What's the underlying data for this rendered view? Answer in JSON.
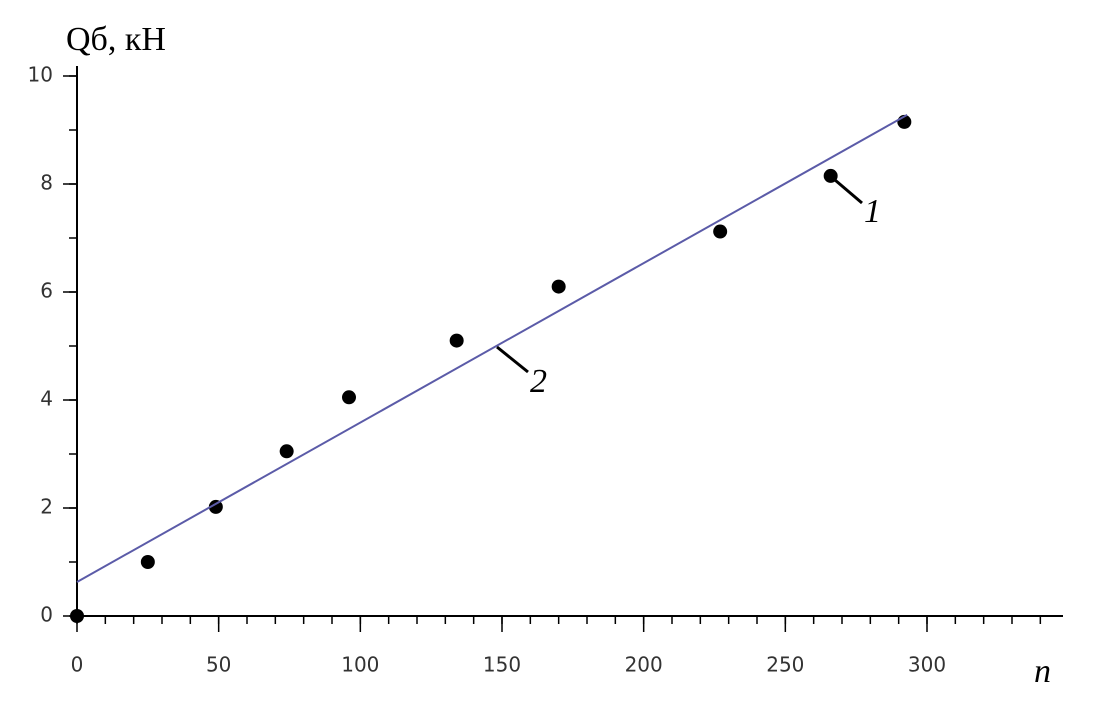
{
  "chart_data": {
    "type": "scatter",
    "y_label": "Qб, кН",
    "x_label": "n",
    "xlim": [
      0,
      348
    ],
    "xticks": [
      0,
      50,
      100,
      150,
      200,
      250,
      300
    ],
    "x_minor_step": 10,
    "ylim": [
      0,
      10
    ],
    "yticks": [
      0,
      2,
      4,
      6,
      8,
      10
    ],
    "y_minor_step": 1,
    "series": [
      {
        "type": "scatter",
        "color": "#000000",
        "x": [
          0,
          25,
          49,
          74,
          96,
          134,
          170,
          227,
          266,
          292
        ],
        "values": [
          0,
          1.0,
          2.02,
          3.05,
          4.05,
          5.1,
          6.1,
          7.12,
          8.15,
          9.15
        ]
      },
      {
        "type": "line",
        "color": "#5b5ba8",
        "x": [
          0,
          293
        ],
        "values": [
          0.63,
          9.28
        ]
      }
    ],
    "annotations": [
      {
        "text": "1"
      },
      {
        "text": "2"
      }
    ]
  }
}
